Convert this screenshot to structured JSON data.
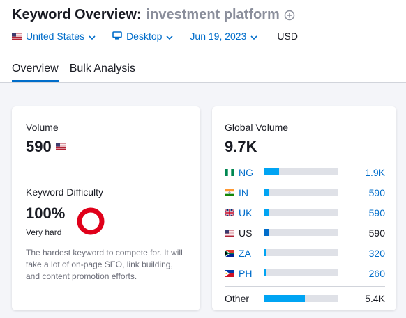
{
  "header": {
    "title": "Keyword Overview:",
    "keyword": "investment platform"
  },
  "filters": {
    "country": "United States",
    "device": "Desktop",
    "date": "Jun 19, 2023",
    "currency": "USD"
  },
  "tabs": [
    {
      "label": "Overview",
      "active": true
    },
    {
      "label": "Bulk Analysis",
      "active": false
    }
  ],
  "volume": {
    "label": "Volume",
    "value": "590"
  },
  "keyword_difficulty": {
    "label": "Keyword Difficulty",
    "value": "100%",
    "level": "Very hard",
    "percent": 100,
    "color": "#e0001a",
    "description": "The hardest keyword to compete for. It will take a lot of on-page SEO, link building, and content promotion efforts."
  },
  "global_volume": {
    "label": "Global Volume",
    "value": "9.7K",
    "bar_color": "#00a4f3",
    "us_bar_color": "#006dca",
    "track_color": "#dfe1e7",
    "countries": [
      {
        "code": "NG",
        "value": "1.9K",
        "fraction": 0.196,
        "flag": "flag-ng-icon"
      },
      {
        "code": "IN",
        "value": "590",
        "fraction": 0.061,
        "flag": "flag-in-icon"
      },
      {
        "code": "UK",
        "value": "590",
        "fraction": 0.061,
        "flag": "flag-uk-icon"
      },
      {
        "code": "US",
        "value": "590",
        "fraction": 0.061,
        "flag": "flag-us-icon"
      },
      {
        "code": "ZA",
        "value": "320",
        "fraction": 0.033,
        "flag": "flag-za-icon"
      },
      {
        "code": "PH",
        "value": "260",
        "fraction": 0.027,
        "flag": "flag-ph-icon"
      }
    ],
    "other": {
      "label": "Other",
      "value": "5.4K",
      "fraction": 0.557
    }
  }
}
